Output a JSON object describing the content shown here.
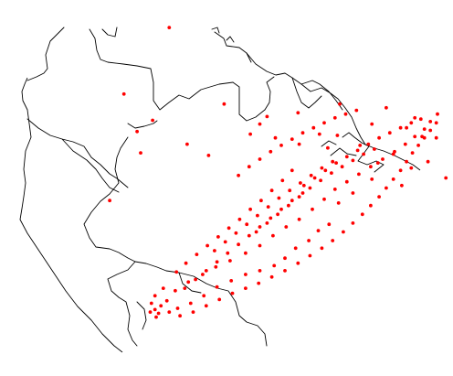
{
  "map": {
    "projection": "geographic",
    "extent_lon": [
      -82,
      -44
    ],
    "extent_lat": [
      -22,
      8
    ],
    "colors": {
      "background": "#ffffff",
      "boundaries": "#000000",
      "points": "#ff0000"
    }
  },
  "chart_data": {
    "type": "scatter",
    "title": "",
    "xlabel": "",
    "ylabel": "",
    "grid": false,
    "legend": "none",
    "xlim": [
      -82,
      -44
    ],
    "ylim": [
      -22,
      8
    ],
    "series": [
      {
        "color": "#ff0000",
        "marker": "dot",
        "points": [
          [
            -71.6,
            0.5
          ],
          [
            -67.8,
            5.8
          ],
          [
            -63.2,
            -0.3
          ],
          [
            -60.2,
            -1.9
          ],
          [
            -58.9,
            -3.0
          ],
          [
            -56.9,
            -3.5
          ],
          [
            -55.2,
            -2.7
          ],
          [
            -54.5,
            -3.8
          ],
          [
            -53.7,
            -2.8
          ],
          [
            -51.8,
            -3.6
          ],
          [
            -50.3,
            -5.0
          ],
          [
            -49.0,
            -4.3
          ],
          [
            -47.9,
            -2.2
          ],
          [
            -47.2,
            -1.4
          ],
          [
            -46.6,
            -2.9
          ],
          [
            -45.4,
            -3.0
          ],
          [
            -44.6,
            -6.2
          ],
          [
            -46.1,
            -4.9
          ],
          [
            -47.5,
            -5.4
          ],
          [
            -48.3,
            -6.8
          ],
          [
            -50.8,
            -6.3
          ],
          [
            -52.4,
            -7.4
          ],
          [
            -53.6,
            -8.2
          ],
          [
            -54.4,
            -9.9
          ],
          [
            -55.3,
            -10.4
          ],
          [
            -56.1,
            -11.2
          ],
          [
            -57.2,
            -11.8
          ],
          [
            -58.1,
            -12.6
          ],
          [
            -59.0,
            -13.2
          ],
          [
            -60.2,
            -13.6
          ],
          [
            -61.4,
            -13.9
          ],
          [
            -62.6,
            -14.4
          ],
          [
            -63.8,
            -14.9
          ],
          [
            -64.9,
            -15.6
          ],
          [
            -66.0,
            -16.2
          ],
          [
            -67.1,
            -16.6
          ],
          [
            -68.0,
            -16.0
          ],
          [
            -67.3,
            -15.2
          ],
          [
            -66.2,
            -14.5
          ],
          [
            -65.0,
            -13.9
          ],
          [
            -63.9,
            -13.3
          ],
          [
            -62.7,
            -12.8
          ],
          [
            -61.4,
            -12.2
          ],
          [
            -60.2,
            -11.6
          ],
          [
            -59.1,
            -10.8
          ],
          [
            -58.0,
            -10.1
          ],
          [
            -56.9,
            -9.5
          ],
          [
            -55.8,
            -8.7
          ],
          [
            -54.8,
            -7.9
          ],
          [
            -53.9,
            -7.1
          ],
          [
            -52.9,
            -6.5
          ],
          [
            -51.9,
            -5.9
          ],
          [
            -50.9,
            -5.3
          ],
          [
            -49.9,
            -4.7
          ],
          [
            -48.9,
            -4.1
          ],
          [
            -48.0,
            -3.5
          ],
          [
            -47.2,
            -2.9
          ],
          [
            -46.4,
            -2.3
          ],
          [
            -45.9,
            -1.7
          ],
          [
            -45.3,
            -1.1
          ],
          [
            -57.5,
            -5.6
          ],
          [
            -58.3,
            -6.4
          ],
          [
            -59.2,
            -7.2
          ],
          [
            -60.1,
            -8.0
          ],
          [
            -61.0,
            -8.7
          ],
          [
            -61.9,
            -9.5
          ],
          [
            -62.8,
            -10.2
          ],
          [
            -63.7,
            -10.9
          ],
          [
            -64.6,
            -11.6
          ],
          [
            -65.5,
            -12.3
          ],
          [
            -66.4,
            -13.0
          ],
          [
            -67.2,
            -13.7
          ],
          [
            -68.3,
            -15.0
          ],
          [
            -69.0,
            -15.6
          ],
          [
            -69.3,
            -16.2
          ],
          [
            -69.0,
            -16.7
          ],
          [
            -68.7,
            -17.0
          ],
          [
            -68.9,
            -17.3
          ],
          [
            -69.4,
            -16.9
          ],
          [
            -68.5,
            -16.4
          ],
          [
            -67.8,
            -16.9
          ],
          [
            -66.9,
            -17.2
          ],
          [
            -65.8,
            -16.9
          ],
          [
            -64.7,
            -16.4
          ],
          [
            -63.6,
            -15.9
          ],
          [
            -62.5,
            -15.4
          ],
          [
            -61.4,
            -15.0
          ],
          [
            -60.3,
            -14.6
          ],
          [
            -59.2,
            -14.1
          ],
          [
            -58.1,
            -13.6
          ],
          [
            -57.0,
            -13.0
          ],
          [
            -56.0,
            -12.4
          ],
          [
            -55.0,
            -11.8
          ],
          [
            -54.1,
            -11.2
          ],
          [
            -53.2,
            -10.5
          ],
          [
            -52.4,
            -9.8
          ],
          [
            -51.6,
            -9.1
          ],
          [
            -50.9,
            -8.4
          ],
          [
            -50.2,
            -7.7
          ],
          [
            -49.6,
            -7.0
          ],
          [
            -49.0,
            -6.3
          ],
          [
            -48.4,
            -5.6
          ],
          [
            -47.9,
            -4.9
          ],
          [
            -47.4,
            -4.2
          ],
          [
            -46.9,
            -3.6
          ],
          [
            -46.4,
            -3.0
          ],
          [
            -45.9,
            -2.4
          ],
          [
            -45.4,
            -1.8
          ],
          [
            -56.5,
            -6.8
          ],
          [
            -55.6,
            -6.2
          ],
          [
            -54.7,
            -5.6
          ],
          [
            -53.8,
            -5.0
          ],
          [
            -52.9,
            -4.5
          ],
          [
            -52.0,
            -4.0
          ],
          [
            -51.1,
            -3.5
          ],
          [
            -50.2,
            -3.0
          ],
          [
            -49.3,
            -2.6
          ],
          [
            -48.4,
            -2.2
          ],
          [
            -47.5,
            -1.8
          ],
          [
            -46.7,
            -1.5
          ],
          [
            -62.0,
            -6.0
          ],
          [
            -61.1,
            -5.3
          ],
          [
            -60.2,
            -4.7
          ],
          [
            -59.3,
            -4.1
          ],
          [
            -58.4,
            -3.6
          ],
          [
            -57.5,
            -3.1
          ],
          [
            -56.6,
            -2.6
          ],
          [
            -55.7,
            -2.2
          ],
          [
            -54.8,
            -1.8
          ],
          [
            -53.9,
            -1.4
          ],
          [
            -53.0,
            -1.1
          ],
          [
            -52.1,
            -0.8
          ],
          [
            -60.5,
            -10.5
          ],
          [
            -59.6,
            -9.8
          ],
          [
            -58.7,
            -9.1
          ],
          [
            -57.8,
            -8.4
          ],
          [
            -56.9,
            -7.7
          ],
          [
            -56.0,
            -7.0
          ],
          [
            -55.1,
            -6.4
          ],
          [
            -54.2,
            -5.8
          ],
          [
            -53.3,
            -5.3
          ],
          [
            -52.4,
            -4.8
          ],
          [
            -51.5,
            -4.3
          ],
          [
            -50.6,
            -3.9
          ],
          [
            -64.0,
            -12.0
          ],
          [
            -63.1,
            -11.3
          ],
          [
            -62.2,
            -10.6
          ],
          [
            -61.3,
            -9.9
          ],
          [
            -60.4,
            -9.2
          ],
          [
            -59.5,
            -8.5
          ],
          [
            -58.6,
            -7.8
          ],
          [
            -57.7,
            -7.2
          ],
          [
            -56.8,
            -6.6
          ],
          [
            -55.9,
            -6.0
          ],
          [
            -55.0,
            -5.4
          ],
          [
            -54.1,
            -4.9
          ],
          [
            -66.5,
            -15.0
          ],
          [
            -65.6,
            -14.3
          ],
          [
            -64.7,
            -13.6
          ],
          [
            -63.8,
            -12.9
          ],
          [
            -62.9,
            -12.2
          ],
          [
            -62.0,
            -11.5
          ],
          [
            -61.1,
            -10.8
          ],
          [
            -60.2,
            -10.1
          ],
          [
            -59.3,
            -9.4
          ],
          [
            -58.4,
            -8.7
          ],
          [
            -57.5,
            -8.0
          ],
          [
            -56.6,
            -7.4
          ],
          [
            -70.5,
            -2.5
          ],
          [
            -70.2,
            -4.2
          ],
          [
            -72.8,
            -8.0
          ],
          [
            -69.2,
            -1.6
          ],
          [
            -66.3,
            -3.5
          ],
          [
            -64.5,
            -4.4
          ],
          [
            -61.0,
            -2.7
          ],
          [
            -59.6,
            -1.3
          ],
          [
            -57.0,
            -1.0
          ],
          [
            -53.5,
            -0.3
          ],
          [
            -50.8,
            -1.9
          ],
          [
            -49.6,
            -0.6
          ]
        ]
      }
    ]
  }
}
